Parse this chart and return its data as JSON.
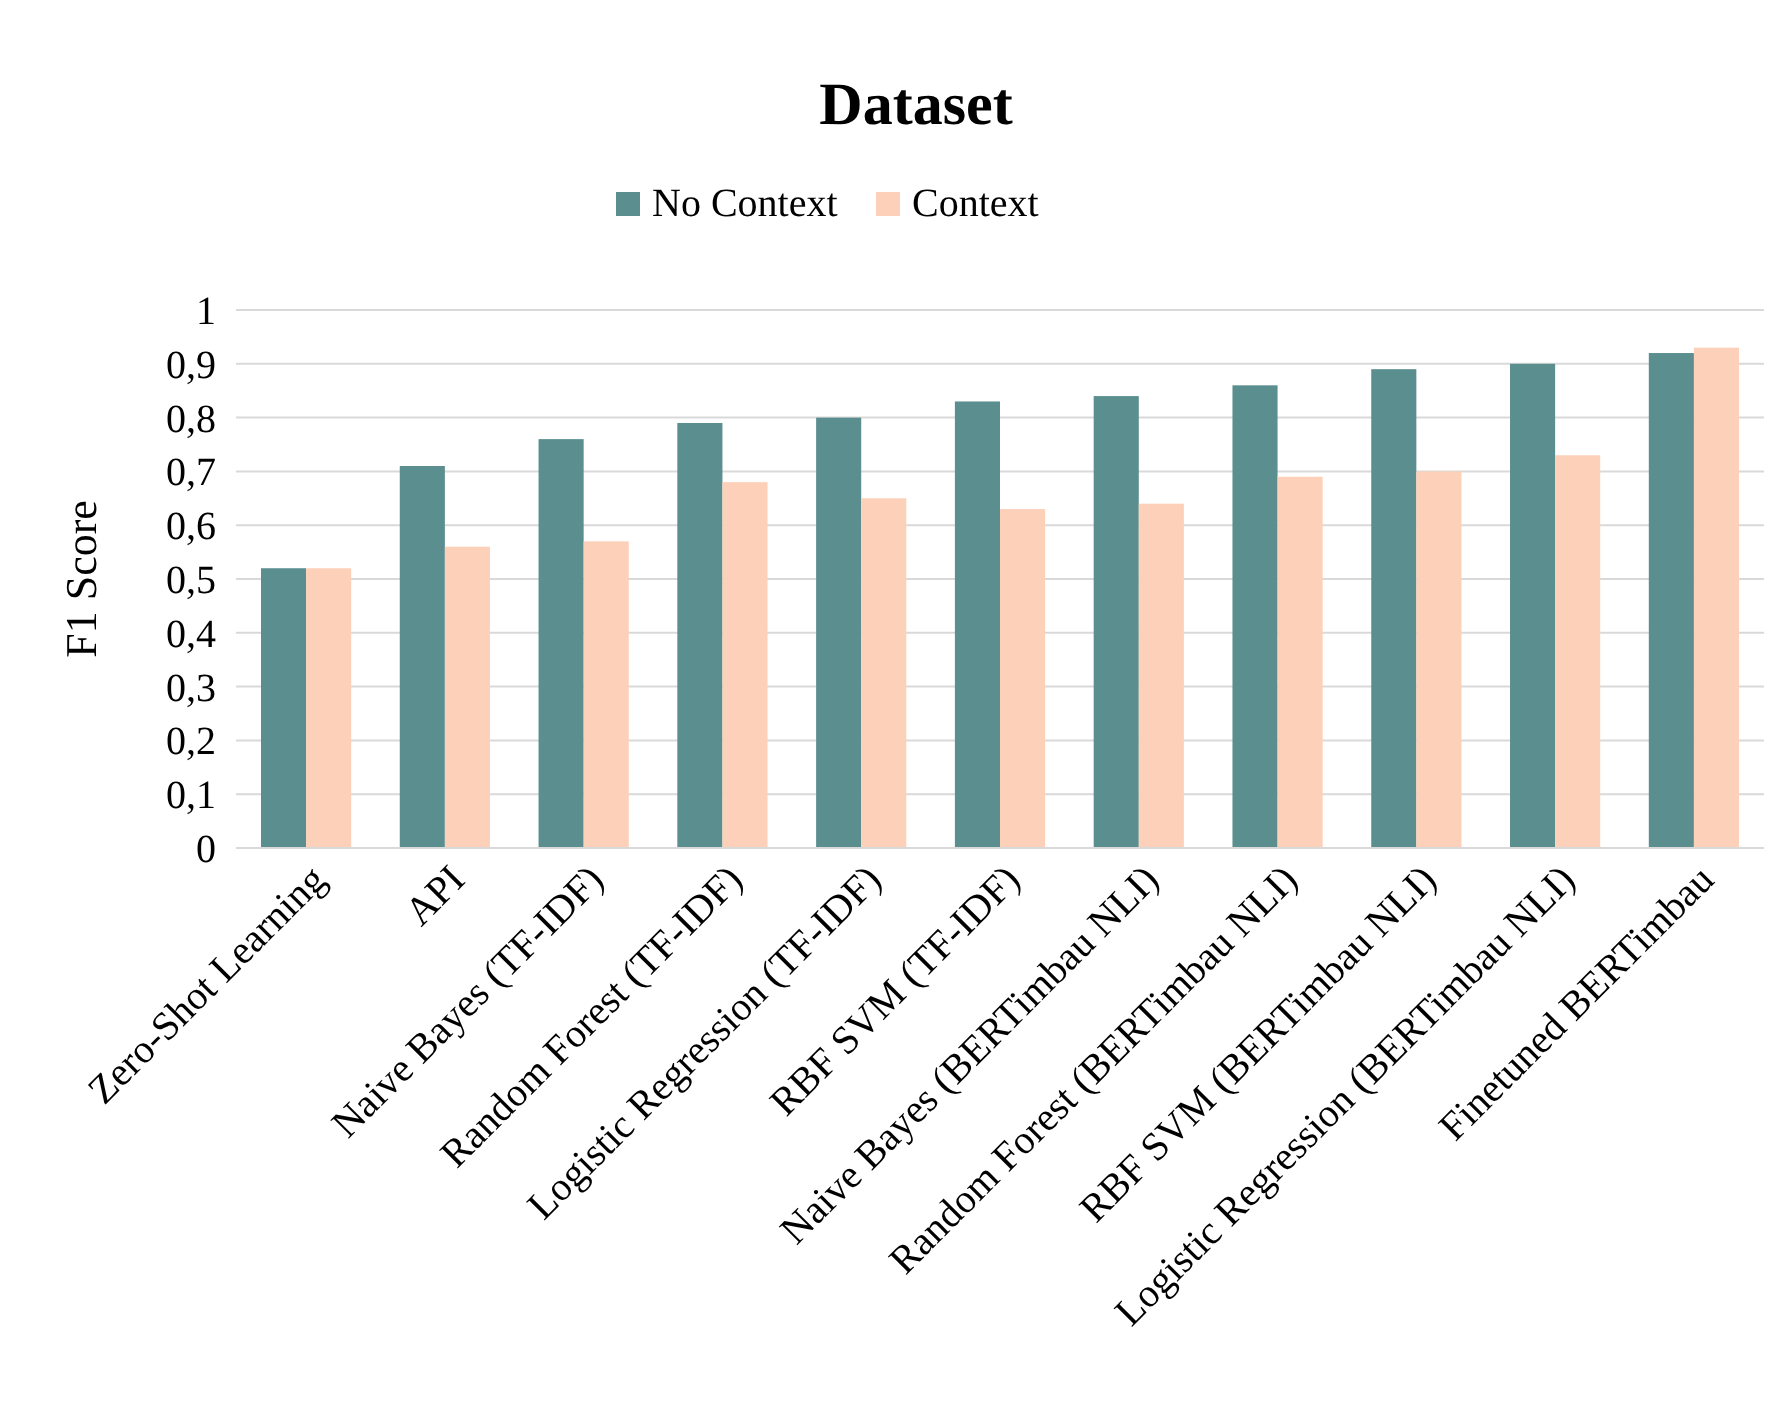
{
  "chart_data": {
    "type": "bar",
    "title": "Dataset",
    "ylabel": "F1 Score",
    "categories": [
      "Zero-Shot Learning",
      "API",
      "Naive Bayes (TF-IDF)",
      "Random Forest (TF-IDF)",
      "Logistic Regression (TF-IDF)",
      "RBF SVM (TF-IDF)",
      "Naive Bayes (BERTimbau NLI)",
      "Random Forest (BERTimbau NLI)",
      "RBF SVM (BERTimbau NLI)",
      "Logistic Regression (BERTimbau NLI)",
      "Finetuned BERTimbau"
    ],
    "series": [
      {
        "name": "No Context",
        "color": "#5b8e8e",
        "values": [
          0.52,
          0.71,
          0.76,
          0.79,
          0.8,
          0.83,
          0.84,
          0.86,
          0.89,
          0.9,
          0.92
        ]
      },
      {
        "name": "Context",
        "color": "#fdd0b9",
        "values": [
          0.52,
          0.56,
          0.57,
          0.68,
          0.65,
          0.63,
          0.64,
          0.69,
          0.7,
          0.73,
          0.93
        ]
      }
    ],
    "ylim": [
      0,
      1
    ],
    "yticks": [
      {
        "value": 0,
        "label": "0"
      },
      {
        "value": 0.1,
        "label": "0,1"
      },
      {
        "value": 0.2,
        "label": "0,2"
      },
      {
        "value": 0.3,
        "label": "0,3"
      },
      {
        "value": 0.4,
        "label": "0,4"
      },
      {
        "value": 0.5,
        "label": "0,5"
      },
      {
        "value": 0.6,
        "label": "0,6"
      },
      {
        "value": 0.7,
        "label": "0,7"
      },
      {
        "value": 0.8,
        "label": "0,8"
      },
      {
        "value": 0.9,
        "label": "0,9"
      },
      {
        "value": 1,
        "label": "1"
      }
    ],
    "grid": "y",
    "legend": "top"
  }
}
